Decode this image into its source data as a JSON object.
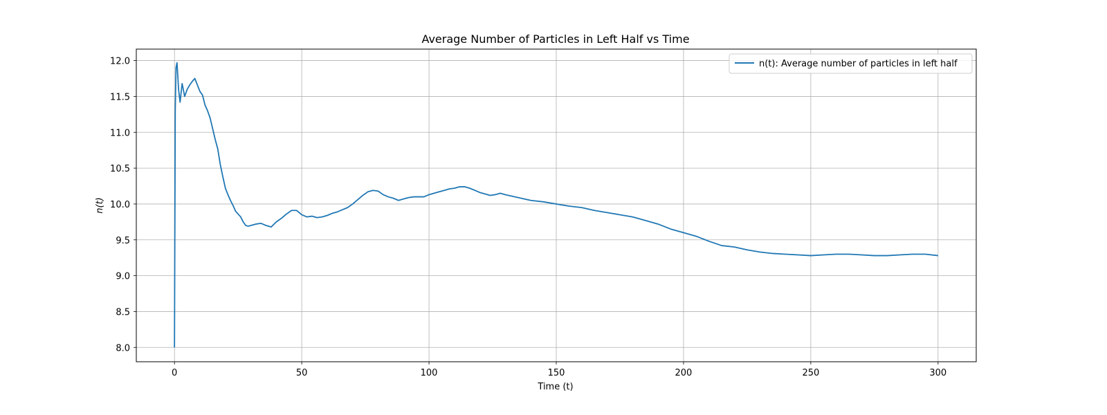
{
  "chart_data": {
    "type": "line",
    "title": "Average Number of Particles in Left Half vs Time",
    "xlabel": "Time (t)",
    "ylabel": "n(t)",
    "xlim": [
      -15,
      315
    ],
    "ylim": [
      7.8,
      12.16
    ],
    "xticks": [
      0,
      50,
      100,
      150,
      200,
      250,
      300
    ],
    "yticks": [
      8.0,
      8.5,
      9.0,
      9.5,
      10.0,
      10.5,
      11.0,
      11.5,
      12.0
    ],
    "grid": true,
    "legend_position": "upper right",
    "series": [
      {
        "name": "n(t): Average number of particles in left half",
        "color": "#1f77b4",
        "x": [
          0,
          0.3,
          0.6,
          1,
          1.6,
          2.2,
          3,
          4,
          5,
          6,
          7,
          8,
          9,
          10,
          11,
          12,
          13,
          14,
          15,
          16,
          17,
          18,
          19,
          20,
          21,
          22,
          23,
          24,
          25,
          26,
          27,
          28,
          29,
          30,
          32,
          34,
          36,
          38,
          40,
          42,
          44,
          46,
          48,
          50,
          52,
          54,
          56,
          58,
          60,
          62,
          64,
          66,
          68,
          70,
          72,
          74,
          76,
          78,
          80,
          82,
          84,
          86,
          88,
          90,
          92,
          94,
          96,
          98,
          100,
          102,
          104,
          106,
          108,
          110,
          112,
          114,
          116,
          118,
          120,
          122,
          124,
          126,
          128,
          130,
          135,
          140,
          145,
          150,
          155,
          160,
          165,
          170,
          175,
          180,
          185,
          190,
          195,
          200,
          205,
          210,
          215,
          220,
          225,
          230,
          235,
          240,
          245,
          250,
          255,
          260,
          265,
          270,
          275,
          280,
          285,
          290,
          295,
          300
        ],
        "y": [
          8.0,
          11.3,
          11.9,
          11.97,
          11.6,
          11.42,
          11.68,
          11.5,
          11.6,
          11.66,
          11.71,
          11.75,
          11.66,
          11.57,
          11.52,
          11.38,
          11.3,
          11.2,
          11.05,
          10.9,
          10.77,
          10.55,
          10.38,
          10.22,
          10.13,
          10.05,
          9.98,
          9.9,
          9.86,
          9.82,
          9.75,
          9.7,
          9.69,
          9.7,
          9.72,
          9.73,
          9.7,
          9.68,
          9.75,
          9.8,
          9.86,
          9.91,
          9.91,
          9.85,
          9.82,
          9.83,
          9.81,
          9.82,
          9.84,
          9.87,
          9.89,
          9.92,
          9.95,
          10.0,
          10.06,
          10.12,
          10.17,
          10.19,
          10.18,
          10.13,
          10.1,
          10.08,
          10.05,
          10.07,
          10.09,
          10.1,
          10.1,
          10.1,
          10.13,
          10.15,
          10.17,
          10.19,
          10.21,
          10.22,
          10.24,
          10.24,
          10.22,
          10.19,
          10.16,
          10.14,
          10.12,
          10.13,
          10.15,
          10.13,
          10.09,
          10.05,
          10.03,
          10.0,
          9.97,
          9.95,
          9.91,
          9.88,
          9.85,
          9.82,
          9.77,
          9.72,
          9.65,
          9.6,
          9.55,
          9.48,
          9.42,
          9.4,
          9.36,
          9.33,
          9.31,
          9.3,
          9.29,
          9.28,
          9.29,
          9.3,
          9.3,
          9.29,
          9.28,
          9.28,
          9.29,
          9.3,
          9.3,
          9.28
        ]
      }
    ]
  }
}
